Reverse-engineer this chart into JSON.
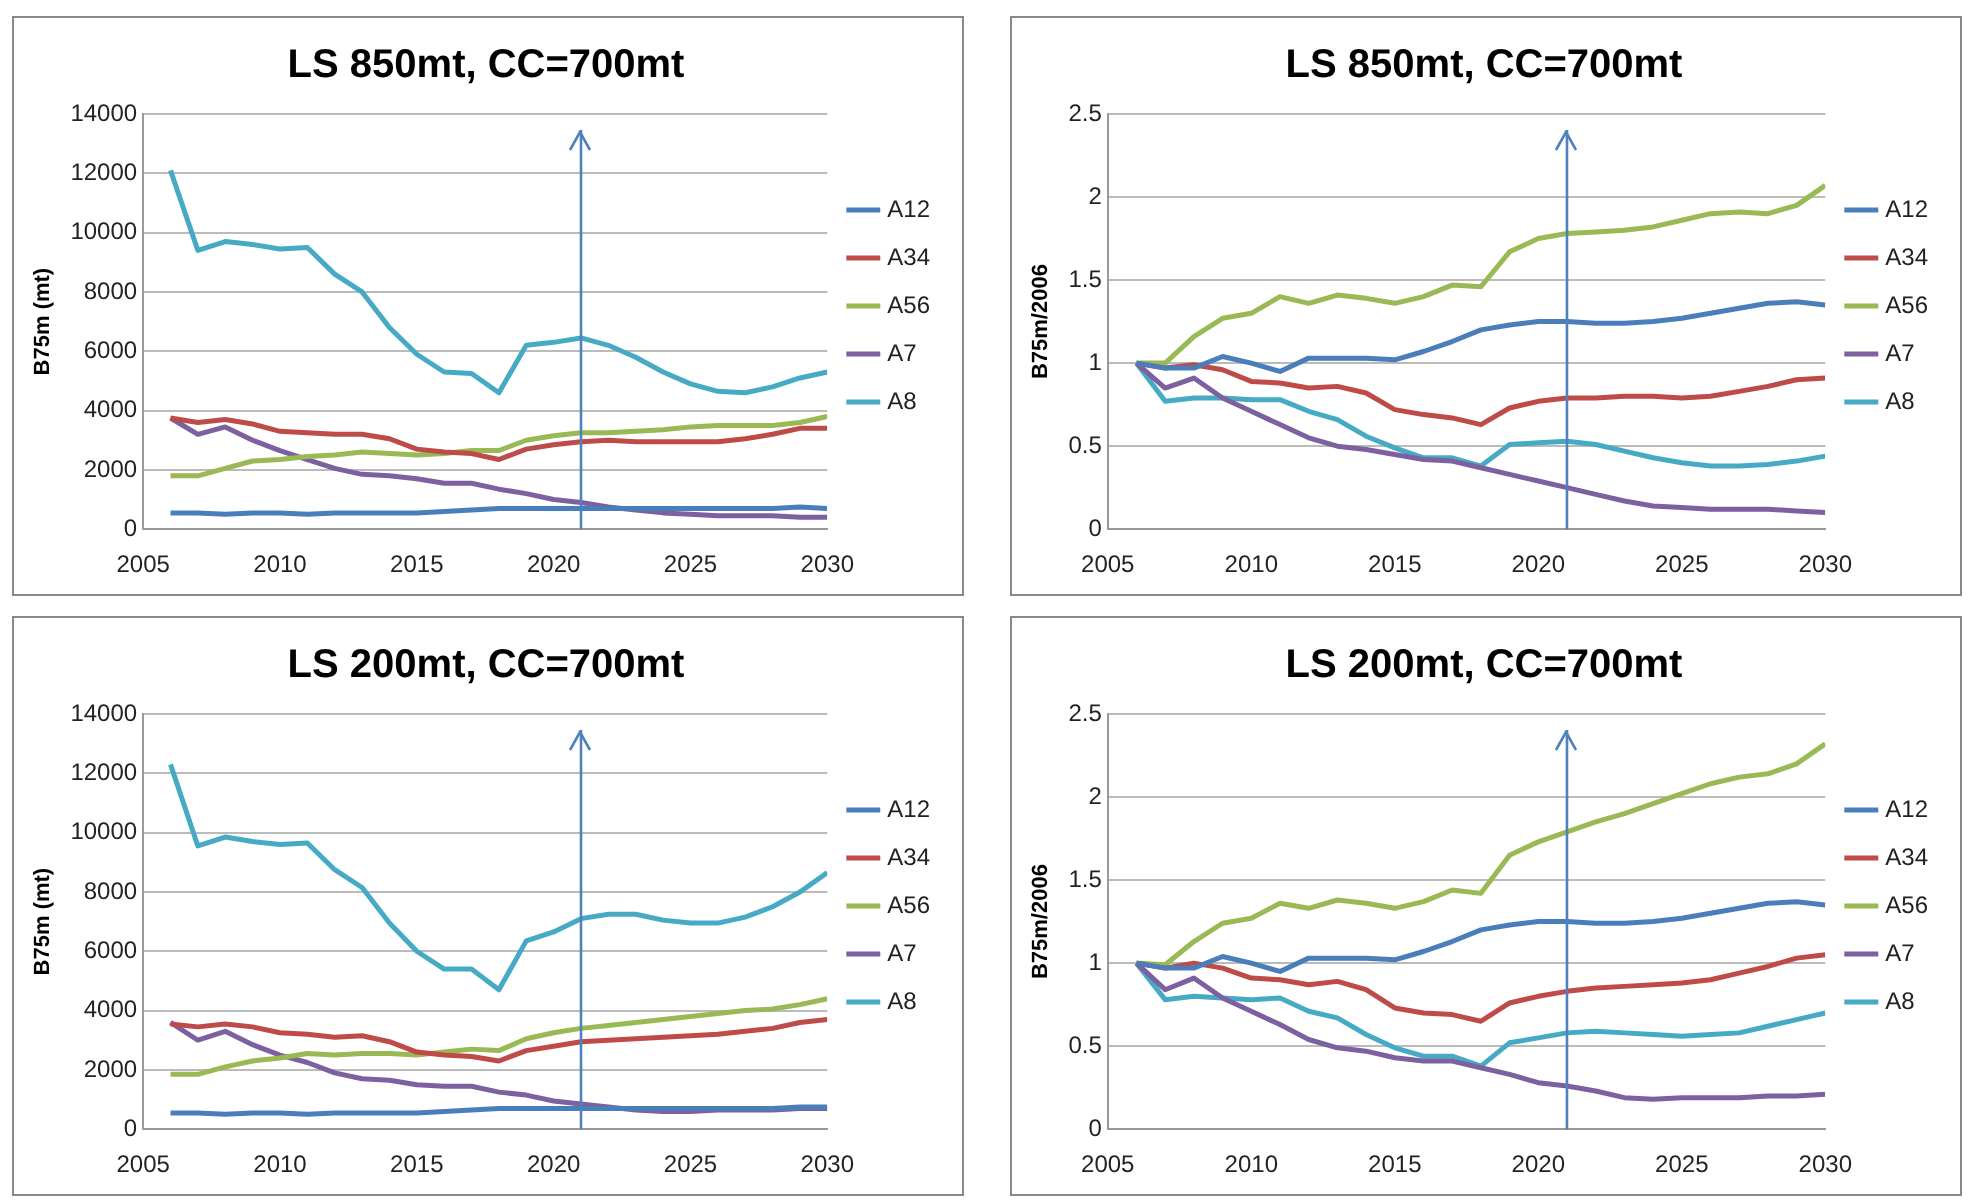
{
  "chart_data": [
    {
      "type": "line",
      "title": "LS 850mt, CC=700mt",
      "ylabel": "B75m (mt)",
      "x": [
        2006,
        2007,
        2008,
        2009,
        2010,
        2011,
        2012,
        2013,
        2014,
        2015,
        2016,
        2017,
        2018,
        2019,
        2020,
        2021,
        2022,
        2023,
        2024,
        2025,
        2026,
        2027,
        2028,
        2029,
        2030
      ],
      "xlim": [
        2005,
        2030
      ],
      "xticks": [
        2005,
        2010,
        2015,
        2020,
        2025,
        2030
      ],
      "ylim": [
        0,
        14000
      ],
      "yticks": [
        0,
        2000,
        4000,
        6000,
        8000,
        10000,
        12000,
        14000
      ],
      "grid": "y",
      "legend": "right",
      "marker": "none",
      "ref_lines": [
        {
          "axis": "x",
          "value": 2021,
          "color": "#4f81bd"
        }
      ],
      "series": [
        {
          "name": "A12",
          "color": "#4a7ebb",
          "values": [
            550,
            550,
            500,
            550,
            550,
            500,
            550,
            550,
            550,
            550,
            600,
            650,
            700,
            700,
            700,
            700,
            700,
            700,
            700,
            700,
            700,
            700,
            700,
            750,
            700
          ]
        },
        {
          "name": "A34",
          "color": "#be4b48",
          "values": [
            3750,
            3600,
            3700,
            3550,
            3300,
            3250,
            3200,
            3200,
            3050,
            2700,
            2600,
            2550,
            2350,
            2700,
            2850,
            2950,
            3000,
            2950,
            2950,
            2950,
            2950,
            3050,
            3200,
            3400,
            3400
          ]
        },
        {
          "name": "A56",
          "color": "#98b954",
          "values": [
            1800,
            1800,
            2050,
            2300,
            2350,
            2450,
            2500,
            2600,
            2550,
            2500,
            2550,
            2650,
            2650,
            3000,
            3150,
            3250,
            3250,
            3300,
            3350,
            3450,
            3500,
            3500,
            3500,
            3600,
            3800
          ]
        },
        {
          "name": "A7",
          "color": "#7d60a0",
          "values": [
            3750,
            3200,
            3450,
            3000,
            2650,
            2350,
            2050,
            1850,
            1800,
            1700,
            1550,
            1550,
            1350,
            1200,
            1000,
            900,
            750,
            650,
            550,
            500,
            450,
            450,
            450,
            400,
            400
          ]
        },
        {
          "name": "A8",
          "color": "#46aac5",
          "values": [
            12100,
            9400,
            9700,
            9600,
            9450,
            9500,
            8600,
            8000,
            6800,
            5900,
            5300,
            5250,
            4600,
            6200,
            6300,
            6450,
            6200,
            5800,
            5300,
            4900,
            4650,
            4600,
            4800,
            5100,
            5300
          ]
        }
      ]
    },
    {
      "type": "line",
      "title": "LS 850mt, CC=700mt",
      "ylabel": "B75m/2006",
      "x": [
        2006,
        2007,
        2008,
        2009,
        2010,
        2011,
        2012,
        2013,
        2014,
        2015,
        2016,
        2017,
        2018,
        2019,
        2020,
        2021,
        2022,
        2023,
        2024,
        2025,
        2026,
        2027,
        2028,
        2029,
        2030
      ],
      "xlim": [
        2005,
        2030
      ],
      "xticks": [
        2005,
        2010,
        2015,
        2020,
        2025,
        2030
      ],
      "ylim": [
        0,
        2.5
      ],
      "yticks": [
        0,
        0.5,
        1,
        1.5,
        2,
        2.5
      ],
      "grid": "y",
      "legend": "right",
      "marker": "none",
      "ref_lines": [
        {
          "axis": "x",
          "value": 2021,
          "color": "#4f81bd"
        }
      ],
      "series": [
        {
          "name": "A12",
          "color": "#4a7ebb",
          "values": [
            1,
            0.97,
            0.97,
            1.04,
            1.0,
            0.95,
            1.03,
            1.03,
            1.03,
            1.02,
            1.07,
            1.13,
            1.2,
            1.23,
            1.25,
            1.25,
            1.24,
            1.24,
            1.25,
            1.27,
            1.3,
            1.33,
            1.36,
            1.37,
            1.35
          ]
        },
        {
          "name": "A34",
          "color": "#be4b48",
          "values": [
            1,
            0.97,
            0.99,
            0.96,
            0.89,
            0.88,
            0.85,
            0.86,
            0.82,
            0.72,
            0.69,
            0.67,
            0.63,
            0.73,
            0.77,
            0.79,
            0.79,
            0.8,
            0.8,
            0.79,
            0.8,
            0.83,
            0.86,
            0.9,
            0.91
          ]
        },
        {
          "name": "A56",
          "color": "#98b954",
          "values": [
            1,
            1,
            1.16,
            1.27,
            1.3,
            1.4,
            1.36,
            1.41,
            1.39,
            1.36,
            1.4,
            1.47,
            1.46,
            1.67,
            1.75,
            1.78,
            1.79,
            1.8,
            1.82,
            1.86,
            1.9,
            1.91,
            1.9,
            1.95,
            2.07
          ]
        },
        {
          "name": "A7",
          "color": "#7d60a0",
          "values": [
            1,
            0.85,
            0.91,
            0.79,
            0.71,
            0.63,
            0.55,
            0.5,
            0.48,
            0.45,
            0.42,
            0.41,
            0.37,
            0.33,
            0.29,
            0.25,
            0.21,
            0.17,
            0.14,
            0.13,
            0.12,
            0.12,
            0.12,
            0.11,
            0.1
          ]
        },
        {
          "name": "A8",
          "color": "#46aac5",
          "values": [
            1,
            0.77,
            0.79,
            0.79,
            0.78,
            0.78,
            0.71,
            0.66,
            0.56,
            0.49,
            0.43,
            0.43,
            0.38,
            0.51,
            0.52,
            0.53,
            0.51,
            0.47,
            0.43,
            0.4,
            0.38,
            0.38,
            0.39,
            0.41,
            0.44
          ]
        }
      ]
    },
    {
      "type": "line",
      "title": "LS 200mt, CC=700mt",
      "ylabel": "B75m (mt)",
      "x": [
        2006,
        2007,
        2008,
        2009,
        2010,
        2011,
        2012,
        2013,
        2014,
        2015,
        2016,
        2017,
        2018,
        2019,
        2020,
        2021,
        2022,
        2023,
        2024,
        2025,
        2026,
        2027,
        2028,
        2029,
        2030
      ],
      "xlim": [
        2005,
        2030
      ],
      "xticks": [
        2005,
        2010,
        2015,
        2020,
        2025,
        2030
      ],
      "ylim": [
        0,
        14000
      ],
      "yticks": [
        0,
        2000,
        4000,
        6000,
        8000,
        10000,
        12000,
        14000
      ],
      "grid": "y",
      "legend": "right",
      "marker": "none",
      "ref_lines": [
        {
          "axis": "x",
          "value": 2021,
          "color": "#4f81bd"
        }
      ],
      "series": [
        {
          "name": "A12",
          "color": "#4a7ebb",
          "values": [
            550,
            550,
            500,
            550,
            550,
            500,
            550,
            550,
            550,
            550,
            600,
            650,
            700,
            700,
            700,
            700,
            700,
            700,
            700,
            700,
            700,
            700,
            700,
            750,
            750
          ]
        },
        {
          "name": "A34",
          "color": "#be4b48",
          "values": [
            3550,
            3450,
            3550,
            3450,
            3250,
            3200,
            3100,
            3150,
            2950,
            2600,
            2500,
            2450,
            2300,
            2650,
            2800,
            2950,
            3000,
            3050,
            3100,
            3150,
            3200,
            3300,
            3400,
            3600,
            3700
          ]
        },
        {
          "name": "A56",
          "color": "#98b954",
          "values": [
            1850,
            1850,
            2100,
            2300,
            2400,
            2550,
            2500,
            2550,
            2550,
            2500,
            2600,
            2700,
            2650,
            3050,
            3250,
            3400,
            3500,
            3600,
            3700,
            3800,
            3900,
            4000,
            4050,
            4200,
            4400
          ]
        },
        {
          "name": "A7",
          "color": "#7d60a0",
          "values": [
            3600,
            3000,
            3300,
            2850,
            2500,
            2250,
            1900,
            1700,
            1650,
            1500,
            1450,
            1450,
            1250,
            1150,
            950,
            850,
            750,
            650,
            600,
            600,
            650,
            650,
            650,
            700,
            700
          ]
        },
        {
          "name": "A8",
          "color": "#46aac5",
          "values": [
            12300,
            9550,
            9850,
            9700,
            9600,
            9650,
            8750,
            8150,
            6950,
            6000,
            5400,
            5400,
            4700,
            6350,
            6650,
            7100,
            7250,
            7250,
            7050,
            6950,
            6950,
            7150,
            7500,
            8000,
            8650
          ]
        }
      ]
    },
    {
      "type": "line",
      "title": "LS 200mt, CC=700mt",
      "ylabel": "B75m/2006",
      "x": [
        2006,
        2007,
        2008,
        2009,
        2010,
        2011,
        2012,
        2013,
        2014,
        2015,
        2016,
        2017,
        2018,
        2019,
        2020,
        2021,
        2022,
        2023,
        2024,
        2025,
        2026,
        2027,
        2028,
        2029,
        2030
      ],
      "xlim": [
        2005,
        2030
      ],
      "xticks": [
        2005,
        2010,
        2015,
        2020,
        2025,
        2030
      ],
      "ylim": [
        0,
        2.5
      ],
      "yticks": [
        0,
        0.5,
        1,
        1.5,
        2,
        2.5
      ],
      "grid": "y",
      "legend": "right",
      "marker": "none",
      "ref_lines": [
        {
          "axis": "x",
          "value": 2021,
          "color": "#4f81bd"
        }
      ],
      "series": [
        {
          "name": "A12",
          "color": "#4a7ebb",
          "values": [
            1,
            0.97,
            0.97,
            1.04,
            1.0,
            0.95,
            1.03,
            1.03,
            1.03,
            1.02,
            1.07,
            1.13,
            1.2,
            1.23,
            1.25,
            1.25,
            1.24,
            1.24,
            1.25,
            1.27,
            1.3,
            1.33,
            1.36,
            1.37,
            1.35
          ]
        },
        {
          "name": "A34",
          "color": "#be4b48",
          "values": [
            1,
            0.97,
            1.0,
            0.97,
            0.91,
            0.9,
            0.87,
            0.89,
            0.84,
            0.73,
            0.7,
            0.69,
            0.65,
            0.76,
            0.8,
            0.83,
            0.85,
            0.86,
            0.87,
            0.88,
            0.9,
            0.94,
            0.98,
            1.03,
            1.05
          ]
        },
        {
          "name": "A56",
          "color": "#98b954",
          "values": [
            1,
            0.99,
            1.13,
            1.24,
            1.27,
            1.36,
            1.33,
            1.38,
            1.36,
            1.33,
            1.37,
            1.44,
            1.42,
            1.65,
            1.73,
            1.79,
            1.85,
            1.9,
            1.96,
            2.02,
            2.08,
            2.12,
            2.14,
            2.2,
            2.32
          ]
        },
        {
          "name": "A7",
          "color": "#7d60a0",
          "values": [
            1,
            0.84,
            0.91,
            0.79,
            0.71,
            0.63,
            0.54,
            0.49,
            0.47,
            0.43,
            0.41,
            0.41,
            0.37,
            0.33,
            0.28,
            0.26,
            0.23,
            0.19,
            0.18,
            0.19,
            0.19,
            0.19,
            0.2,
            0.2,
            0.21
          ]
        },
        {
          "name": "A8",
          "color": "#46aac5",
          "values": [
            1,
            0.78,
            0.8,
            0.79,
            0.78,
            0.79,
            0.71,
            0.67,
            0.57,
            0.49,
            0.44,
            0.44,
            0.38,
            0.52,
            0.55,
            0.58,
            0.59,
            0.58,
            0.57,
            0.56,
            0.57,
            0.58,
            0.62,
            0.66,
            0.7
          ]
        }
      ]
    }
  ]
}
